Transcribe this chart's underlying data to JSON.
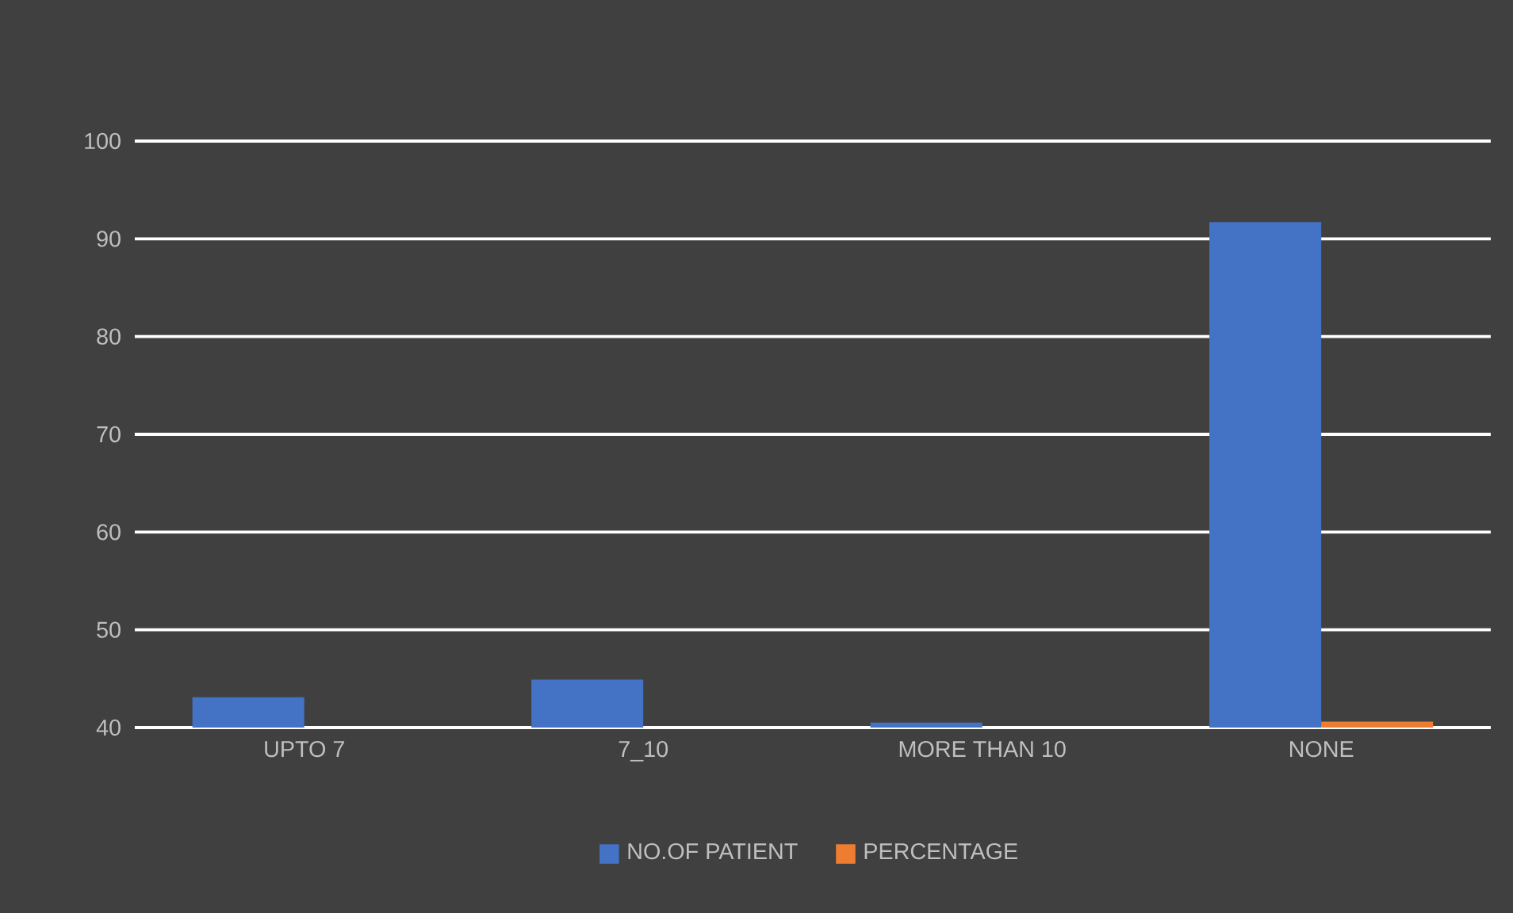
{
  "chart_data": {
    "type": "bar",
    "categories": [
      "UPTO 7",
      "7_10",
      "MORE THAN 10",
      "NONE"
    ],
    "series": [
      {
        "name": "NO.OF PATIENT",
        "color": "#4472c4",
        "values": [
          43.1,
          44.9,
          40.5,
          91.7
        ]
      },
      {
        "name": "PERCENTAGE",
        "color": "#ed7d31",
        "values": [
          null,
          null,
          null,
          40.6
        ]
      }
    ],
    "ylim": [
      40,
      100
    ],
    "yticks": [
      40,
      50,
      60,
      70,
      80,
      90,
      100
    ],
    "grid": "y",
    "legend": "bottom"
  }
}
